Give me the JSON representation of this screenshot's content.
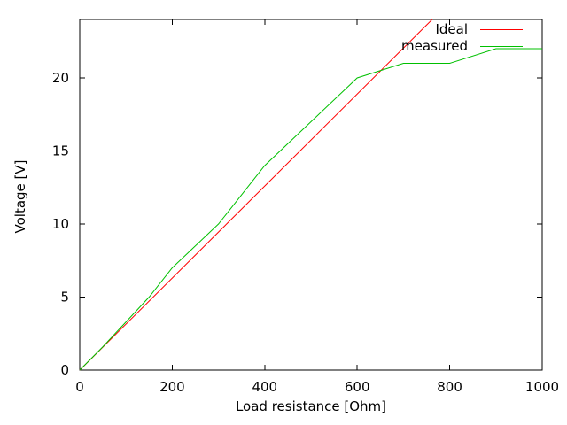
{
  "chart_data": {
    "type": "line",
    "title": "",
    "xlabel": "Load resistance [Ohm]",
    "ylabel": "Voltage [V]",
    "xlim": [
      0,
      1000
    ],
    "ylim": [
      0,
      24
    ],
    "x_ticks": [
      0,
      200,
      400,
      600,
      800,
      1000
    ],
    "y_ticks": [
      0,
      5,
      10,
      15,
      20
    ],
    "grid": false,
    "legend_position": "top-right-inside",
    "background_color": "#ffffff",
    "frame_color": "#000000",
    "series": [
      {
        "name": "Ideal",
        "color": "#ff0000",
        "note": "straight line, slope ~31.5 mV/Ohm, clipped at plot top (24 V) near R = 762 Ohm",
        "x": [
          0,
          762
        ],
        "y": [
          0,
          24
        ]
      },
      {
        "name": "measured",
        "color": "#00c000",
        "x": [
          0,
          50,
          100,
          150,
          200,
          300,
          400,
          500,
          600,
          700,
          800,
          900,
          1000
        ],
        "y": [
          0,
          1.6,
          3.3,
          5.0,
          7.0,
          10.0,
          14.0,
          17.0,
          20.0,
          21.0,
          21.0,
          22.0,
          22.0
        ]
      }
    ]
  }
}
